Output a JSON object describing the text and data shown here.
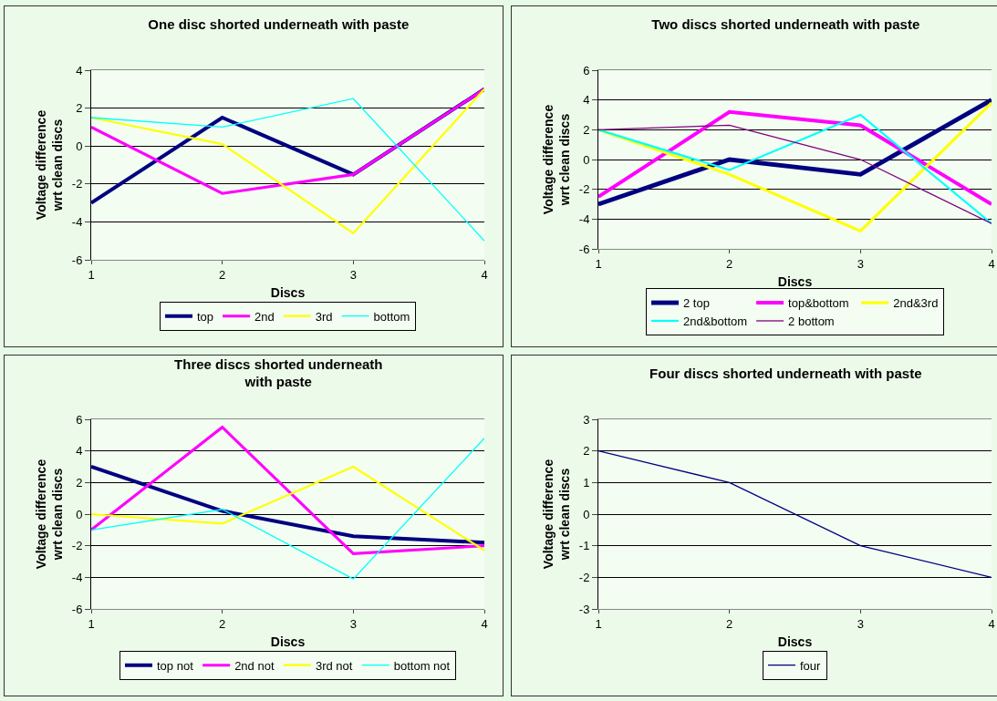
{
  "chart_data": [
    {
      "type": "line",
      "title": "One disc shorted underneath with paste",
      "xlabel": "Discs",
      "ylabel": "Voltage difference wrt clean discs",
      "categories": [
        "1",
        "2",
        "3",
        "4"
      ],
      "ylim": [
        -6,
        4
      ],
      "yticks": [
        -6,
        -4,
        -2,
        0,
        2,
        4
      ],
      "grid": "y",
      "legend": "bottom",
      "series": [
        {
          "name": "top",
          "color": "#000080",
          "values": [
            -3,
            1.5,
            -1.5,
            3
          ]
        },
        {
          "name": "2nd",
          "color": "#ff00ff",
          "values": [
            1,
            -2.5,
            -1.5,
            3
          ]
        },
        {
          "name": "3rd",
          "color": "#ffff00",
          "values": [
            1.5,
            0.1,
            -4.6,
            3
          ]
        },
        {
          "name": "bottom",
          "color": "#00ffff",
          "values": [
            1.5,
            1,
            2.5,
            -5
          ]
        }
      ]
    },
    {
      "type": "line",
      "title": "Two discs shorted underneath with paste",
      "xlabel": "Discs",
      "ylabel": "Voltage difference wrt clean discs",
      "categories": [
        "1",
        "2",
        "3",
        "4"
      ],
      "ylim": [
        -6,
        6
      ],
      "yticks": [
        -6,
        -4,
        -2,
        0,
        2,
        4,
        6
      ],
      "grid": "y",
      "legend": "bottom",
      "series": [
        {
          "name": "2 top",
          "color": "#000080",
          "values": [
            -3,
            0,
            -1,
            4
          ]
        },
        {
          "name": "top&bottom",
          "color": "#ff00ff",
          "values": [
            -2.5,
            3.2,
            2.3,
            -3
          ]
        },
        {
          "name": "2nd&3rd",
          "color": "#ffff00",
          "values": [
            2,
            -1,
            -4.8,
            3.8
          ]
        },
        {
          "name": "2nd&bottom",
          "color": "#00ffff",
          "values": [
            2,
            -0.7,
            3,
            -4.3
          ]
        },
        {
          "name": "2 bottom",
          "color": "#800080",
          "values": [
            2,
            2.3,
            0,
            -4.3
          ]
        }
      ]
    },
    {
      "type": "line",
      "title": "Three discs shorted underneath with paste",
      "xlabel": "Discs",
      "ylabel": "Voltage difference wrt clean discs",
      "categories": [
        "1",
        "2",
        "3",
        "4"
      ],
      "ylim": [
        -6,
        6
      ],
      "yticks": [
        -6,
        -4,
        -2,
        0,
        2,
        4,
        6
      ],
      "grid": "y",
      "legend": "bottom",
      "series": [
        {
          "name": "top not",
          "color": "#000080",
          "values": [
            3,
            0.2,
            -1.4,
            -1.8
          ]
        },
        {
          "name": "2nd not",
          "color": "#ff00ff",
          "values": [
            -1,
            5.5,
            -2.5,
            -2
          ]
        },
        {
          "name": "3rd not",
          "color": "#ffff00",
          "values": [
            0,
            -0.6,
            3,
            -2.3
          ]
        },
        {
          "name": "bottom not",
          "color": "#00ffff",
          "values": [
            -1,
            0.3,
            -4.1,
            4.8
          ]
        }
      ]
    },
    {
      "type": "line",
      "title": "Four discs shorted underneath with paste",
      "xlabel": "Discs",
      "ylabel": "Voltage difference wrt clean discs",
      "categories": [
        "1",
        "2",
        "3",
        "4"
      ],
      "ylim": [
        -3,
        3
      ],
      "yticks": [
        -3,
        -2,
        -1,
        0,
        1,
        2,
        3
      ],
      "grid": "y",
      "legend": "bottom",
      "series": [
        {
          "name": "four",
          "color": "#000080",
          "values": [
            2,
            1,
            -1,
            -2
          ]
        }
      ]
    }
  ]
}
